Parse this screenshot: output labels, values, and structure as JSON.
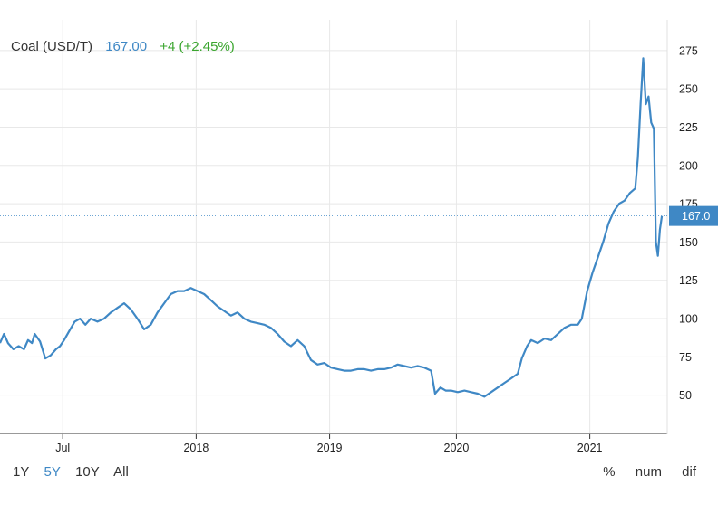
{
  "header": {
    "title": "Coal (USD/T)",
    "price": "167.00",
    "change": "+4 (+2.45%)"
  },
  "range_buttons": [
    "1Y",
    "5Y",
    "10Y",
    "All"
  ],
  "active_range": "5Y",
  "mode_buttons": [
    "%",
    "num",
    "dif"
  ],
  "colors": {
    "line": "#3f88c5",
    "price": "#3f88c5",
    "change": "#3aa52e",
    "grid": "#e8e8e8"
  },
  "chart_data": {
    "type": "line",
    "series": [
      {
        "values": [
          [
            2016.52,
            84
          ],
          [
            2016.55,
            90
          ],
          [
            2016.58,
            84
          ],
          [
            2016.62,
            80
          ],
          [
            2016.66,
            82
          ],
          [
            2016.7,
            80
          ],
          [
            2016.73,
            86
          ],
          [
            2016.76,
            84
          ],
          [
            2016.78,
            90
          ],
          [
            2016.82,
            85
          ],
          [
            2016.86,
            74
          ],
          [
            2016.9,
            76
          ],
          [
            2016.94,
            80
          ],
          [
            2016.97,
            82
          ],
          [
            2017.0,
            86
          ],
          [
            2017.04,
            92
          ],
          [
            2017.08,
            98
          ],
          [
            2017.12,
            100
          ],
          [
            2017.16,
            96
          ],
          [
            2017.2,
            100
          ],
          [
            2017.25,
            98
          ],
          [
            2017.3,
            100
          ],
          [
            2017.35,
            104
          ],
          [
            2017.4,
            107
          ],
          [
            2017.45,
            110
          ],
          [
            2017.5,
            106
          ],
          [
            2017.55,
            100
          ],
          [
            2017.6,
            93
          ],
          [
            2017.65,
            96
          ],
          [
            2017.7,
            104
          ],
          [
            2017.75,
            110
          ],
          [
            2017.8,
            116
          ],
          [
            2017.85,
            118
          ],
          [
            2017.9,
            118
          ],
          [
            2017.95,
            120
          ],
          [
            2018.0,
            118
          ],
          [
            2018.05,
            116
          ],
          [
            2018.1,
            112
          ],
          [
            2018.15,
            108
          ],
          [
            2018.2,
            105
          ],
          [
            2018.25,
            102
          ],
          [
            2018.3,
            104
          ],
          [
            2018.35,
            100
          ],
          [
            2018.4,
            98
          ],
          [
            2018.45,
            97
          ],
          [
            2018.5,
            96
          ],
          [
            2018.55,
            94
          ],
          [
            2018.6,
            90
          ],
          [
            2018.65,
            85
          ],
          [
            2018.7,
            82
          ],
          [
            2018.75,
            86
          ],
          [
            2018.8,
            82
          ],
          [
            2018.85,
            73
          ],
          [
            2018.9,
            70
          ],
          [
            2018.95,
            71
          ],
          [
            2019.0,
            68
          ],
          [
            2019.05,
            67
          ],
          [
            2019.1,
            66
          ],
          [
            2019.15,
            66
          ],
          [
            2019.2,
            67
          ],
          [
            2019.25,
            67
          ],
          [
            2019.3,
            66
          ],
          [
            2019.35,
            67
          ],
          [
            2019.4,
            67
          ],
          [
            2019.45,
            68
          ],
          [
            2019.5,
            70
          ],
          [
            2019.55,
            69
          ],
          [
            2019.6,
            68
          ],
          [
            2019.65,
            69
          ],
          [
            2019.7,
            68
          ],
          [
            2019.75,
            66
          ],
          [
            2019.78,
            51
          ],
          [
            2019.82,
            55
          ],
          [
            2019.86,
            53
          ],
          [
            2019.9,
            53
          ],
          [
            2019.95,
            52
          ],
          [
            2020.0,
            53
          ],
          [
            2020.05,
            52
          ],
          [
            2020.1,
            51
          ],
          [
            2020.15,
            49
          ],
          [
            2020.2,
            52
          ],
          [
            2020.25,
            55
          ],
          [
            2020.3,
            58
          ],
          [
            2020.35,
            61
          ],
          [
            2020.4,
            64
          ],
          [
            2020.43,
            74
          ],
          [
            2020.47,
            82
          ],
          [
            2020.5,
            86
          ],
          [
            2020.55,
            84
          ],
          [
            2020.6,
            87
          ],
          [
            2020.65,
            86
          ],
          [
            2020.7,
            90
          ],
          [
            2020.75,
            94
          ],
          [
            2020.8,
            96
          ],
          [
            2020.85,
            96
          ],
          [
            2020.88,
            100
          ],
          [
            2020.92,
            118
          ],
          [
            2020.96,
            130
          ],
          [
            2021.0,
            140
          ],
          [
            2021.04,
            150
          ],
          [
            2021.08,
            162
          ],
          [
            2021.12,
            170
          ],
          [
            2021.16,
            175
          ],
          [
            2021.2,
            177
          ],
          [
            2021.24,
            182
          ],
          [
            2021.28,
            185
          ],
          [
            2021.3,
            205
          ],
          [
            2021.32,
            240
          ],
          [
            2021.34,
            270
          ],
          [
            2021.36,
            240
          ],
          [
            2021.38,
            245
          ],
          [
            2021.4,
            228
          ],
          [
            2021.42,
            224
          ],
          [
            2021.435,
            150
          ],
          [
            2021.45,
            141
          ],
          [
            2021.465,
            158
          ],
          [
            2021.48,
            167
          ]
        ]
      }
    ],
    "xlim": [
      2016.52,
      2021.52
    ],
    "ylim": [
      25,
      295
    ],
    "x_ticks": [
      {
        "label": "Jul",
        "value": 2016.99
      },
      {
        "label": "2018",
        "value": 2017.99
      },
      {
        "label": "2019",
        "value": 2018.99
      },
      {
        "label": "2020",
        "value": 2019.94
      },
      {
        "label": "2021",
        "value": 2020.94
      }
    ],
    "y_ticks": [
      50,
      75,
      100,
      125,
      150,
      175,
      200,
      225,
      250,
      275
    ],
    "current_value": 167.0,
    "current_label": "167.0",
    "grid": true
  }
}
